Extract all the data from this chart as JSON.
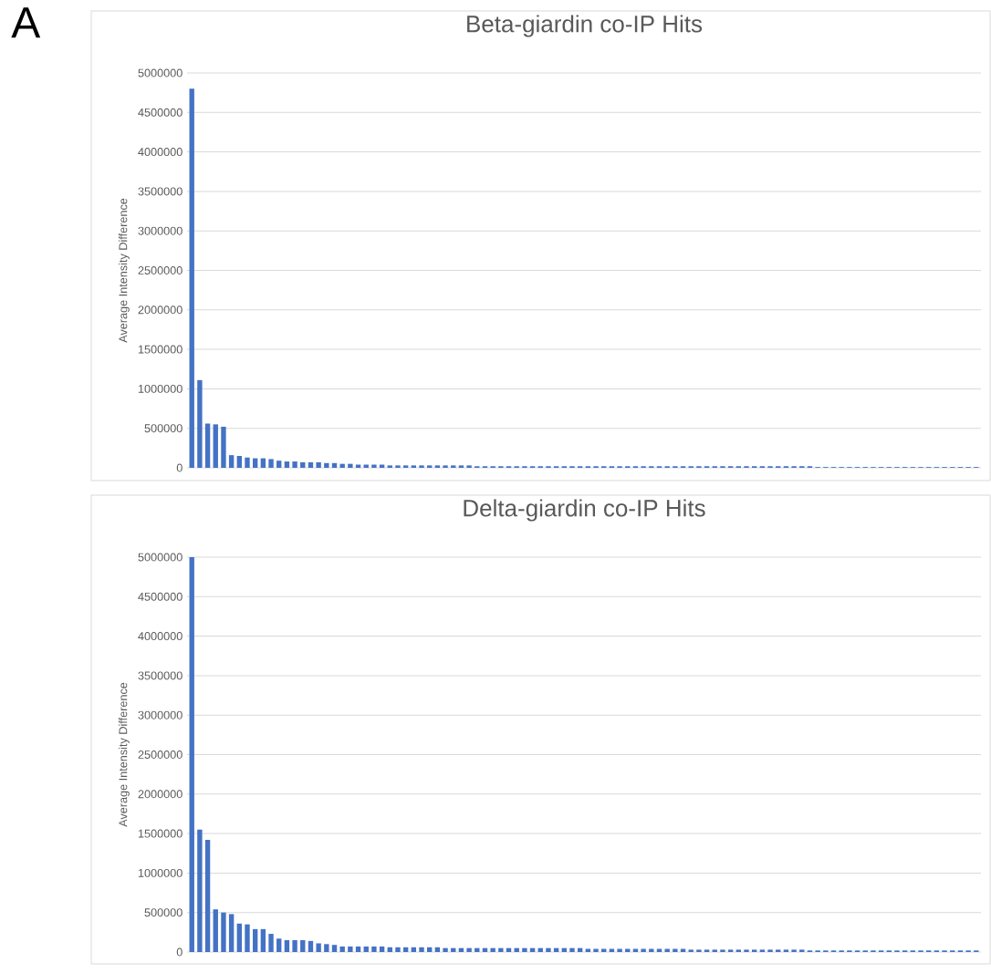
{
  "chart_data": [
    {
      "type": "bar",
      "title": "Beta-giardin co-IP Hits",
      "ylabel": "Average Intensity Difference",
      "annotations": [
        "A"
      ],
      "color": "#4472c4",
      "grid": "y",
      "ylim": [
        0,
        5000000
      ],
      "yticks": [
        0,
        500000,
        1000000,
        1500000,
        2000000,
        2500000,
        3000000,
        3500000,
        4000000,
        4500000,
        5000000
      ],
      "categories": [
        null,
        null,
        null,
        null,
        null,
        null,
        null,
        null,
        null,
        null,
        null,
        null,
        null,
        null,
        null,
        null,
        null,
        null,
        null,
        null,
        null,
        null,
        null,
        null,
        null,
        null,
        null,
        null,
        null,
        null,
        null,
        null,
        null,
        null,
        null,
        null,
        null,
        null,
        null,
        null,
        null,
        null,
        null,
        null,
        null,
        null,
        null,
        null,
        null,
        null,
        null,
        null,
        null,
        null,
        null,
        null,
        null,
        null,
        null,
        null,
        null,
        null,
        null,
        null,
        null,
        null,
        null,
        null,
        null,
        null,
        null,
        null,
        null,
        null,
        null,
        null,
        null,
        null,
        null,
        null,
        null,
        null,
        null,
        null,
        null,
        null,
        null,
        null,
        null,
        null,
        null,
        null,
        null,
        null,
        null,
        null,
        null,
        null,
        null,
        null
      ],
      "values": [
        4800000,
        1110000,
        560000,
        550000,
        520000,
        160000,
        150000,
        130000,
        120000,
        120000,
        110000,
        90000,
        80000,
        80000,
        70000,
        70000,
        70000,
        60000,
        60000,
        50000,
        50000,
        40000,
        40000,
        40000,
        40000,
        30000,
        30000,
        30000,
        30000,
        30000,
        30000,
        30000,
        30000,
        30000,
        30000,
        30000,
        20000,
        20000,
        20000,
        20000,
        20000,
        20000,
        20000,
        20000,
        20000,
        20000,
        20000,
        20000,
        20000,
        20000,
        20000,
        20000,
        20000,
        20000,
        20000,
        20000,
        20000,
        20000,
        20000,
        20000,
        20000,
        20000,
        20000,
        20000,
        20000,
        20000,
        20000,
        20000,
        20000,
        20000,
        20000,
        20000,
        20000,
        20000,
        20000,
        20000,
        20000,
        20000,
        20000,
        10000,
        10000,
        10000,
        10000,
        10000,
        10000,
        10000,
        10000,
        10000,
        10000,
        10000,
        10000,
        10000,
        10000,
        10000,
        10000,
        10000,
        10000,
        10000,
        10000,
        10000
      ]
    },
    {
      "type": "bar",
      "title": "Delta-giardin co-IP Hits",
      "ylabel": "Average Intensity Difference",
      "color": "#4472c4",
      "grid": "y",
      "ylim": [
        0,
        5000000
      ],
      "yticks": [
        0,
        500000,
        1000000,
        1500000,
        2000000,
        2500000,
        3000000,
        3500000,
        4000000,
        4500000,
        5000000
      ],
      "categories": [
        null,
        null,
        null,
        null,
        null,
        null,
        null,
        null,
        null,
        null,
        null,
        null,
        null,
        null,
        null,
        null,
        null,
        null,
        null,
        null,
        null,
        null,
        null,
        null,
        null,
        null,
        null,
        null,
        null,
        null,
        null,
        null,
        null,
        null,
        null,
        null,
        null,
        null,
        null,
        null,
        null,
        null,
        null,
        null,
        null,
        null,
        null,
        null,
        null,
        null,
        null,
        null,
        null,
        null,
        null,
        null,
        null,
        null,
        null,
        null,
        null,
        null,
        null,
        null,
        null,
        null,
        null,
        null,
        null,
        null,
        null,
        null,
        null,
        null,
        null,
        null,
        null,
        null,
        null,
        null,
        null,
        null,
        null,
        null,
        null,
        null,
        null,
        null,
        null,
        null,
        null,
        null,
        null,
        null,
        null,
        null,
        null,
        null,
        null,
        null
      ],
      "values": [
        5000000,
        1550000,
        1420000,
        540000,
        500000,
        480000,
        360000,
        350000,
        290000,
        290000,
        230000,
        170000,
        150000,
        150000,
        150000,
        140000,
        110000,
        100000,
        90000,
        70000,
        70000,
        70000,
        70000,
        70000,
        70000,
        60000,
        60000,
        60000,
        60000,
        60000,
        60000,
        60000,
        50000,
        50000,
        50000,
        50000,
        50000,
        50000,
        50000,
        50000,
        50000,
        50000,
        50000,
        50000,
        50000,
        50000,
        50000,
        50000,
        50000,
        50000,
        40000,
        40000,
        40000,
        40000,
        40000,
        40000,
        40000,
        40000,
        40000,
        40000,
        40000,
        40000,
        40000,
        30000,
        30000,
        30000,
        30000,
        30000,
        30000,
        30000,
        30000,
        30000,
        30000,
        30000,
        30000,
        30000,
        30000,
        30000,
        20000,
        20000,
        20000,
        20000,
        20000,
        20000,
        20000,
        20000,
        20000,
        20000,
        20000,
        20000,
        20000,
        20000,
        20000,
        20000,
        20000,
        20000,
        20000,
        20000,
        20000,
        20000
      ]
    }
  ]
}
